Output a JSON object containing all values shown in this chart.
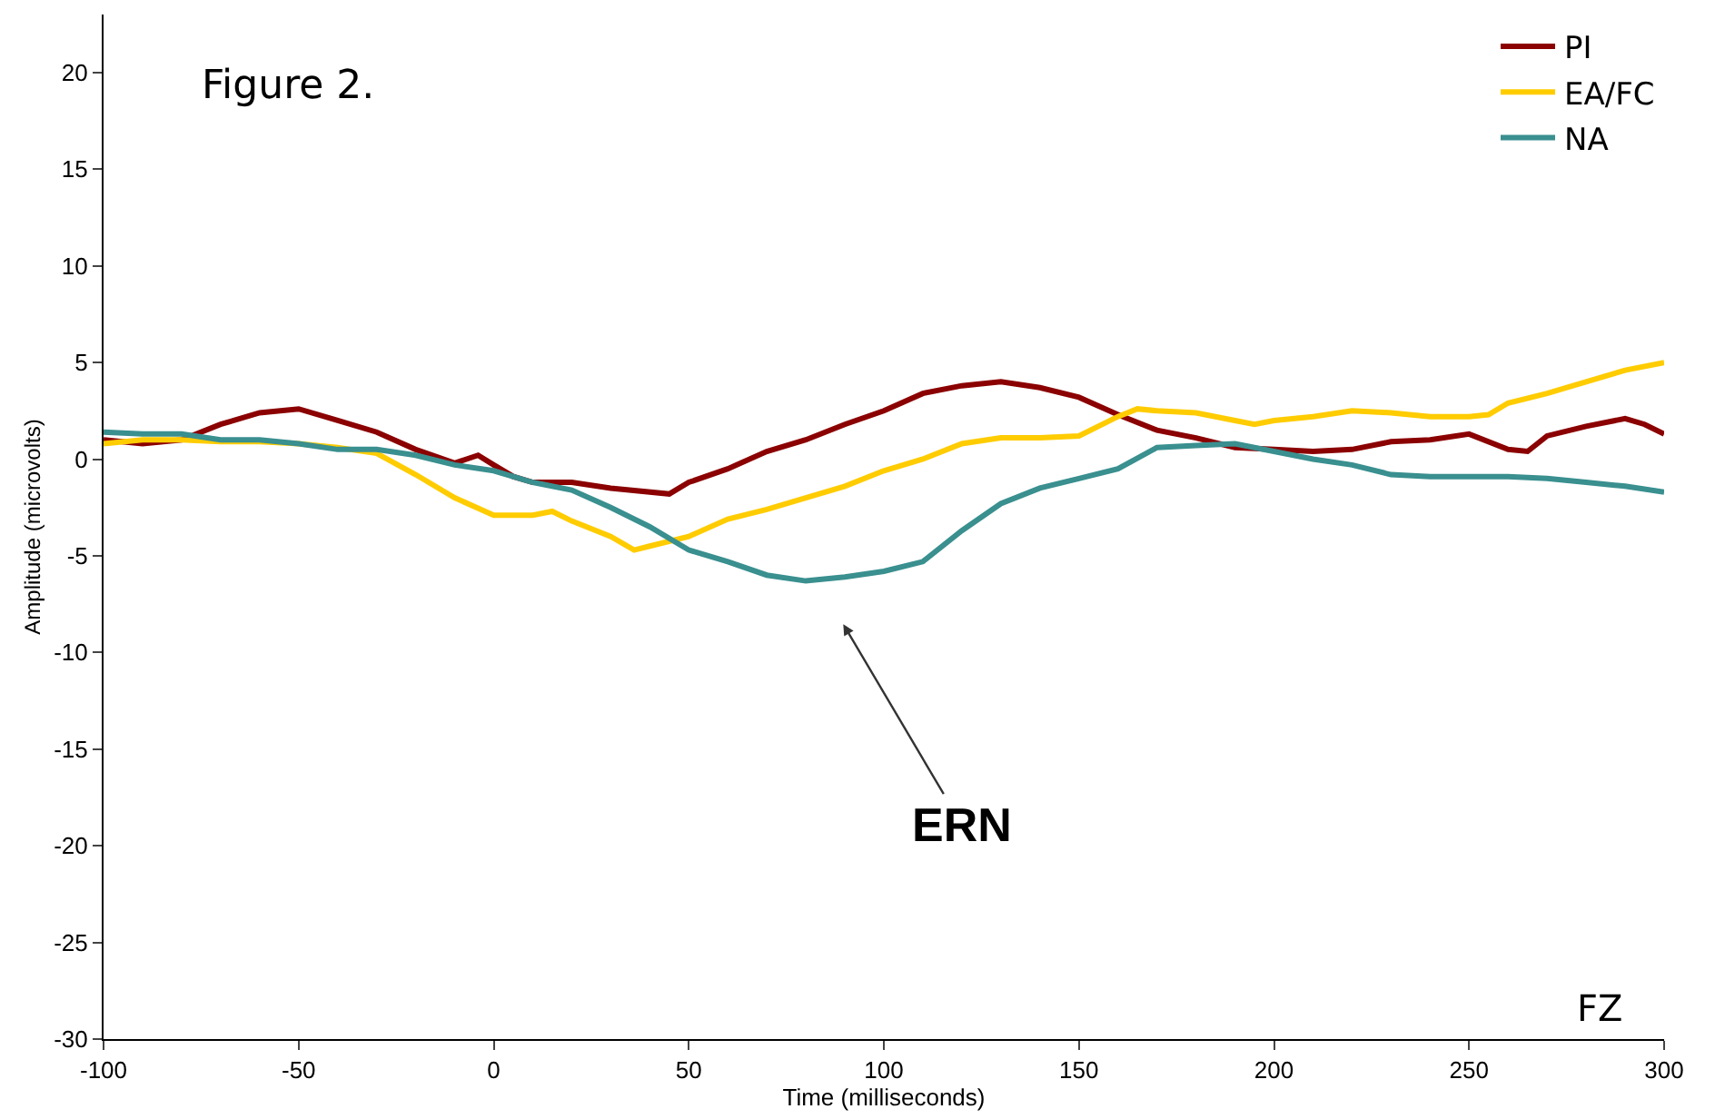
{
  "chart_data": {
    "type": "line",
    "xlabel": "Time (milliseconds)",
    "ylabel": "Amplitude (microvolts)",
    "xlim": [
      -100,
      300
    ],
    "xticks": [
      -100,
      -50,
      0,
      50,
      100,
      150,
      200,
      250,
      300
    ],
    "ylim": [
      -30,
      23
    ],
    "yticks": [
      -30,
      -25,
      -20,
      -15,
      -10,
      -5,
      0,
      5,
      10,
      15,
      20
    ],
    "grid": false,
    "legend": "top right",
    "marker": "none",
    "line_style": "solid",
    "annotations": [
      "Figure 2.",
      "ERN",
      "FZ"
    ],
    "series": [
      {
        "name": "PI",
        "color": "#8b0000",
        "x": [
          -100,
          -90,
          -80,
          -70,
          -60,
          -50,
          -40,
          -30,
          -20,
          -10,
          -4,
          0,
          5,
          10,
          20,
          30,
          45,
          50,
          60,
          70,
          80,
          90,
          100,
          110,
          120,
          130,
          140,
          150,
          160,
          170,
          180,
          190,
          200,
          210,
          220,
          230,
          240,
          250,
          260,
          265,
          270,
          280,
          290,
          295,
          300
        ],
        "values": [
          1.0,
          0.8,
          1.0,
          1.8,
          2.4,
          2.6,
          2.0,
          1.4,
          0.5,
          -0.2,
          0.2,
          -0.3,
          -0.9,
          -1.2,
          -1.2,
          -1.5,
          -1.8,
          -1.2,
          -0.5,
          0.4,
          1.0,
          1.8,
          2.5,
          3.4,
          3.8,
          4.0,
          3.7,
          3.2,
          2.3,
          1.5,
          1.1,
          0.6,
          0.5,
          0.4,
          0.5,
          0.9,
          1.0,
          1.3,
          0.5,
          0.4,
          1.2,
          1.7,
          2.1,
          1.8,
          1.3
        ]
      },
      {
        "name": "EA/FC",
        "color": "#ffcc00",
        "x": [
          -100,
          -90,
          -80,
          -70,
          -60,
          -50,
          -40,
          -30,
          -20,
          -10,
          0,
          10,
          15,
          20,
          30,
          36,
          40,
          50,
          60,
          70,
          80,
          90,
          100,
          110,
          120,
          130,
          140,
          150,
          160,
          165,
          170,
          180,
          190,
          195,
          200,
          210,
          220,
          230,
          240,
          250,
          255,
          260,
          270,
          280,
          290,
          300
        ],
        "values": [
          0.8,
          1.0,
          1.0,
          0.9,
          0.9,
          0.8,
          0.6,
          0.3,
          -0.8,
          -2.0,
          -2.9,
          -2.9,
          -2.7,
          -3.2,
          -4.0,
          -4.7,
          -4.5,
          -4.0,
          -3.1,
          -2.6,
          -2.0,
          -1.4,
          -0.6,
          0.0,
          0.8,
          1.1,
          1.1,
          1.2,
          2.2,
          2.6,
          2.5,
          2.4,
          2.0,
          1.8,
          2.0,
          2.2,
          2.5,
          2.4,
          2.2,
          2.2,
          2.3,
          2.9,
          3.4,
          4.0,
          4.6,
          5.0
        ]
      },
      {
        "name": "NA",
        "color": "#3a8f8f",
        "x": [
          -100,
          -90,
          -80,
          -70,
          -60,
          -50,
          -40,
          -30,
          -20,
          -10,
          0,
          10,
          20,
          30,
          40,
          50,
          60,
          70,
          80,
          90,
          100,
          110,
          120,
          130,
          140,
          150,
          160,
          170,
          180,
          190,
          200,
          210,
          220,
          230,
          240,
          250,
          260,
          270,
          280,
          290,
          300
        ],
        "values": [
          1.4,
          1.3,
          1.3,
          1.0,
          1.0,
          0.8,
          0.5,
          0.5,
          0.2,
          -0.3,
          -0.6,
          -1.2,
          -1.6,
          -2.5,
          -3.5,
          -4.7,
          -5.3,
          -6.0,
          -6.3,
          -6.1,
          -5.8,
          -5.3,
          -3.7,
          -2.3,
          -1.5,
          -1.0,
          -0.5,
          0.6,
          0.7,
          0.8,
          0.4,
          0.0,
          -0.3,
          -0.8,
          -0.9,
          -0.9,
          -0.9,
          -1.0,
          -1.2,
          -1.4,
          -1.7
        ]
      }
    ]
  }
}
